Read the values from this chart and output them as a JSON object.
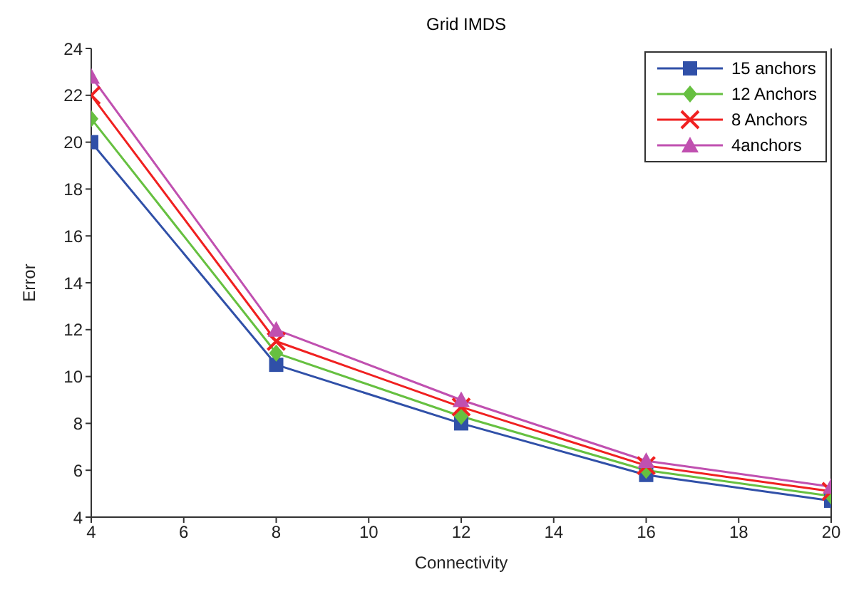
{
  "chart_data": {
    "type": "line",
    "title": "Grid IMDS",
    "xlabel": "Connectivity",
    "ylabel": "Error",
    "x": [
      4,
      8,
      12,
      16,
      20
    ],
    "series": [
      {
        "name": "15 anchors",
        "color": "#3050a8",
        "marker": "square",
        "values": [
          20,
          10.5,
          8.0,
          5.8,
          4.7
        ]
      },
      {
        "name": "12 Anchors",
        "color": "#66c040",
        "marker": "diamond",
        "values": [
          21,
          11.0,
          8.3,
          6.0,
          4.9
        ]
      },
      {
        "name": "8 Anchors",
        "color": "#f02020",
        "marker": "cross",
        "values": [
          22,
          11.5,
          8.7,
          6.2,
          5.1
        ]
      },
      {
        "name": "4anchors",
        "color": "#c050b0",
        "marker": "triangle",
        "values": [
          22.8,
          12.0,
          9.0,
          6.4,
          5.3
        ]
      }
    ],
    "xlim": [
      4,
      20
    ],
    "xticks": [
      4,
      6,
      8,
      10,
      12,
      14,
      16,
      18,
      20
    ],
    "ylim": [
      4,
      24
    ],
    "yticks": [
      4,
      6,
      8,
      10,
      12,
      14,
      16,
      18,
      20,
      22,
      24
    ],
    "grid": false,
    "legend": "top right",
    "line_style": "solid"
  }
}
